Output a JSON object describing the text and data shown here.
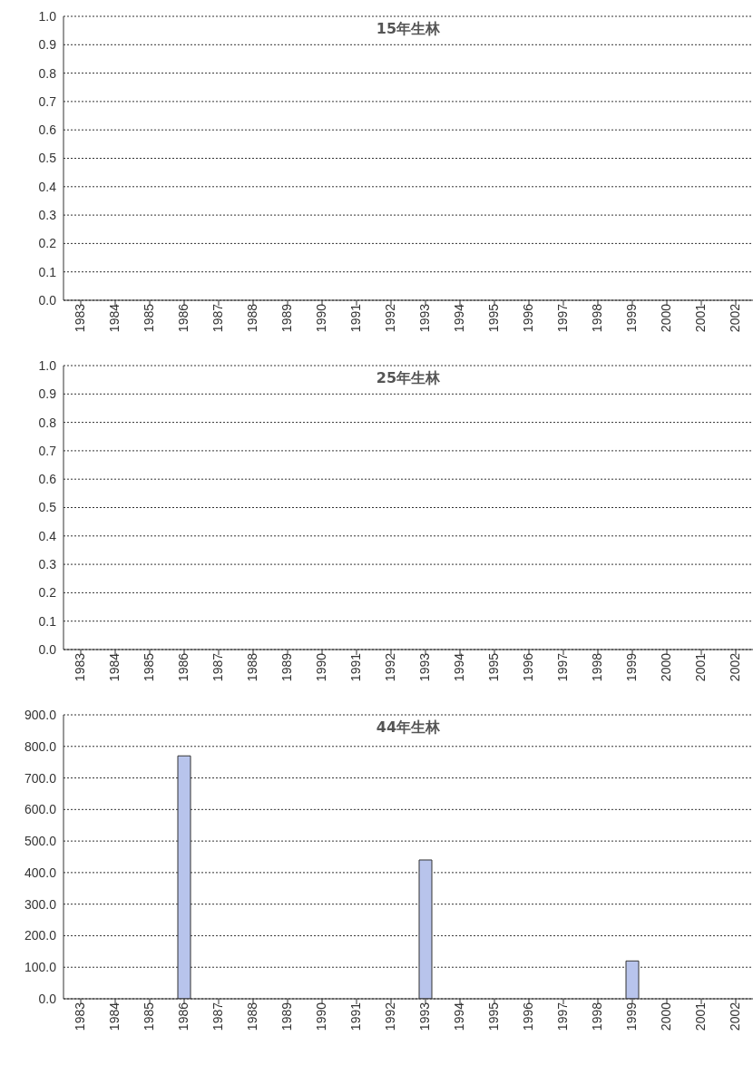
{
  "chart_data": [
    {
      "type": "bar",
      "title": "15年生林",
      "categories": [
        "1983",
        "1984",
        "1985",
        "1986",
        "1987",
        "1988",
        "1989",
        "1990",
        "1991",
        "1992",
        "1993",
        "1994",
        "1995",
        "1996",
        "1997",
        "1998",
        "1999",
        "2000",
        "2001",
        "2002"
      ],
      "values": [
        0,
        0,
        0,
        0,
        0,
        0,
        0,
        0,
        0,
        0,
        0,
        0,
        0,
        0,
        0,
        0,
        0,
        0,
        0,
        0
      ],
      "color": "#b8c4ec",
      "ylim": [
        0,
        1
      ],
      "yticks": [
        {
          "value": 0,
          "label": "0.0"
        },
        {
          "value": 0.1,
          "label": "0.1"
        },
        {
          "value": 0.2,
          "label": "0.2"
        },
        {
          "value": 0.3,
          "label": "0.3"
        },
        {
          "value": 0.4,
          "label": "0.4"
        },
        {
          "value": 0.5,
          "label": "0.5"
        },
        {
          "value": 0.6,
          "label": "0.6"
        },
        {
          "value": 0.7,
          "label": "0.7"
        },
        {
          "value": 0.8,
          "label": "0.8"
        },
        {
          "value": 0.9,
          "label": "0.9"
        },
        {
          "value": 1,
          "label": "1.0"
        }
      ],
      "grid": "y"
    },
    {
      "type": "bar",
      "title": "25年生林",
      "categories": [
        "1983",
        "1984",
        "1985",
        "1986",
        "1987",
        "1988",
        "1989",
        "1990",
        "1991",
        "1992",
        "1993",
        "1994",
        "1995",
        "1996",
        "1997",
        "1998",
        "1999",
        "2000",
        "2001",
        "2002"
      ],
      "values": [
        0,
        0,
        0,
        0,
        0,
        0,
        0,
        0,
        0,
        0,
        0,
        0,
        0,
        0,
        0,
        0,
        0,
        0,
        0,
        0
      ],
      "color": "#b8c4ec",
      "ylim": [
        0,
        1
      ],
      "yticks": [
        {
          "value": 0,
          "label": "0.0"
        },
        {
          "value": 0.1,
          "label": "0.1"
        },
        {
          "value": 0.2,
          "label": "0.2"
        },
        {
          "value": 0.3,
          "label": "0.3"
        },
        {
          "value": 0.4,
          "label": "0.4"
        },
        {
          "value": 0.5,
          "label": "0.5"
        },
        {
          "value": 0.6,
          "label": "0.6"
        },
        {
          "value": 0.7,
          "label": "0.7"
        },
        {
          "value": 0.8,
          "label": "0.8"
        },
        {
          "value": 0.9,
          "label": "0.9"
        },
        {
          "value": 1,
          "label": "1.0"
        }
      ],
      "grid": "y"
    },
    {
      "type": "bar",
      "title": "44年生林",
      "categories": [
        "1983",
        "1984",
        "1985",
        "1986",
        "1987",
        "1988",
        "1989",
        "1990",
        "1991",
        "1992",
        "1993",
        "1994",
        "1995",
        "1996",
        "1997",
        "1998",
        "1999",
        "2000",
        "2001",
        "2002"
      ],
      "values": [
        0,
        0,
        0,
        770,
        0,
        0,
        0,
        0,
        0,
        0,
        440,
        0,
        0,
        0,
        0,
        0,
        120,
        0,
        0,
        0
      ],
      "color": "#b8c4ec",
      "ylim": [
        0,
        900
      ],
      "yticks": [
        {
          "value": 0,
          "label": "0.0"
        },
        {
          "value": 100,
          "label": "100.0"
        },
        {
          "value": 200,
          "label": "200.0"
        },
        {
          "value": 300,
          "label": "300.0"
        },
        {
          "value": 400,
          "label": "400.0"
        },
        {
          "value": 500,
          "label": "500.0"
        },
        {
          "value": 600,
          "label": "600.0"
        },
        {
          "value": 700,
          "label": "700.0"
        },
        {
          "value": 800,
          "label": "800.0"
        },
        {
          "value": 900,
          "label": "900.0"
        }
      ],
      "grid": "y"
    }
  ]
}
